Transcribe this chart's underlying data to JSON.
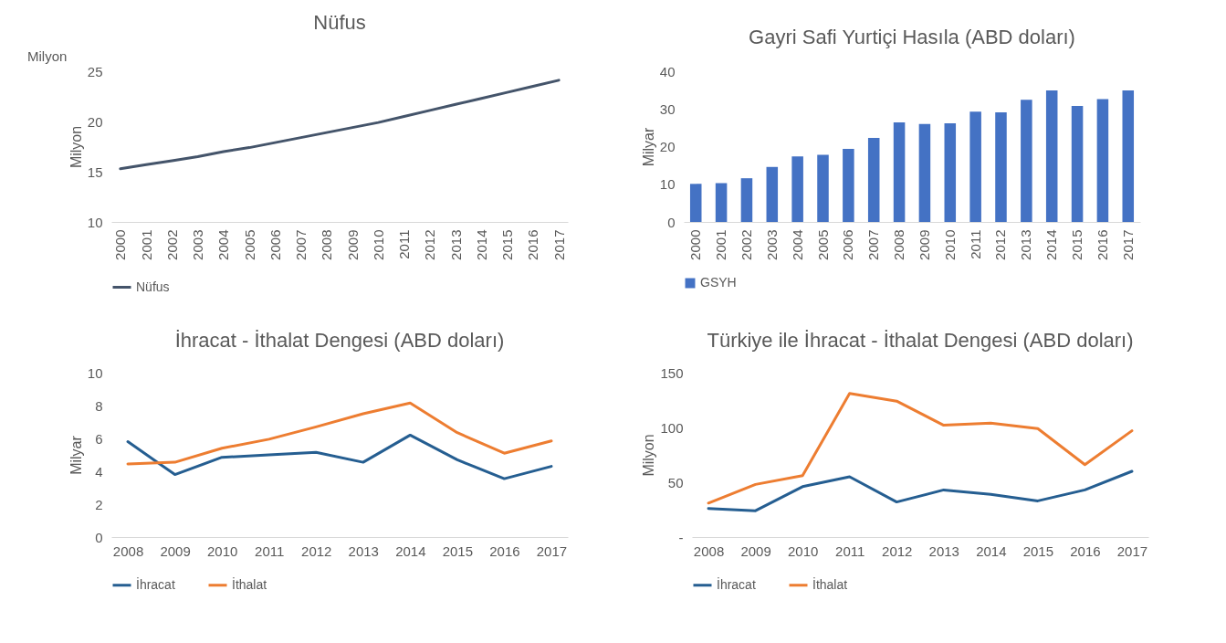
{
  "chart_data": [
    {
      "type": "line",
      "title": "Nüfus",
      "ylabel": "Milyon",
      "annotations": [
        "Milyon"
      ],
      "categories": [
        "2000",
        "2001",
        "2002",
        "2003",
        "2004",
        "2005",
        "2006",
        "2007",
        "2008",
        "2009",
        "2010",
        "2011",
        "2012",
        "2013",
        "2014",
        "2015",
        "2016",
        "2017"
      ],
      "series": [
        {
          "name": "Nüfus",
          "color": "#44546a",
          "values": [
            15.3,
            15.7,
            16.1,
            16.5,
            17.0,
            17.4,
            17.9,
            18.4,
            18.9,
            19.4,
            19.9,
            20.5,
            21.1,
            21.7,
            22.3,
            22.9,
            23.5,
            24.1
          ]
        }
      ],
      "ylim": [
        10,
        25
      ],
      "yticks": [
        10,
        15,
        20,
        25
      ],
      "grid": false,
      "legend": "bottom",
      "marker": "none",
      "line_style": "solid"
    },
    {
      "type": "bar",
      "title": "Gayri Safi Yurtiçi Hasıla (ABD doları)",
      "ylabel": "Milyar",
      "categories": [
        "2000",
        "2001",
        "2002",
        "2003",
        "2004",
        "2005",
        "2006",
        "2007",
        "2008",
        "2009",
        "2010",
        "2011",
        "2012",
        "2013",
        "2014",
        "2015",
        "2016",
        "2017"
      ],
      "series": [
        {
          "name": "GSYH",
          "color": "#4472c4",
          "values": [
            10.1,
            10.3,
            11.6,
            14.6,
            17.4,
            17.8,
            19.4,
            22.3,
            26.4,
            26.0,
            26.2,
            29.3,
            29.1,
            32.4,
            34.9,
            30.8,
            32.6,
            34.9
          ]
        }
      ],
      "ylim": [
        0,
        40
      ],
      "yticks": [
        0,
        10,
        20,
        30,
        40
      ],
      "grid": false,
      "legend": "bottom"
    },
    {
      "type": "line",
      "title": "İhracat - İthalat Dengesi (ABD doları)",
      "ylabel": "Milyar",
      "categories": [
        "2008",
        "2009",
        "2010",
        "2011",
        "2012",
        "2013",
        "2014",
        "2015",
        "2016",
        "2017"
      ],
      "series": [
        {
          "name": "İhracat",
          "color": "#255e91",
          "values": [
            5.8,
            3.8,
            4.85,
            5.0,
            5.15,
            4.55,
            6.2,
            4.7,
            3.55,
            4.3
          ]
        },
        {
          "name": "İthalat",
          "color": "#ed7d31",
          "values": [
            4.45,
            4.55,
            5.4,
            5.95,
            6.7,
            7.5,
            8.15,
            6.35,
            5.1,
            5.85
          ]
        }
      ],
      "ylim": [
        0,
        10
      ],
      "yticks": [
        0,
        2,
        4,
        6,
        8,
        10
      ],
      "grid": false,
      "legend": "bottom",
      "marker": "none",
      "line_style": "solid"
    },
    {
      "type": "line",
      "title": "Türkiye ile İhracat - İthalat Dengesi (ABD doları)",
      "ylabel": "Milyon",
      "categories": [
        "2008",
        "2009",
        "2010",
        "2011",
        "2012",
        "2013",
        "2014",
        "2015",
        "2016",
        "2017"
      ],
      "series": [
        {
          "name": "İhracat",
          "color": "#255e91",
          "values": [
            26,
            24,
            46,
            55,
            32,
            43,
            39,
            33,
            43,
            60
          ]
        },
        {
          "name": "İthalat",
          "color": "#ed7d31",
          "values": [
            31,
            48,
            56,
            131,
            124,
            102,
            104,
            99,
            66,
            97
          ]
        }
      ],
      "ylim": [
        0,
        150
      ],
      "yticks": [
        {
          "value": 0,
          "label": "-"
        },
        50,
        100,
        150
      ],
      "grid": false,
      "legend": "bottom",
      "marker": "none",
      "line_style": "solid"
    }
  ]
}
